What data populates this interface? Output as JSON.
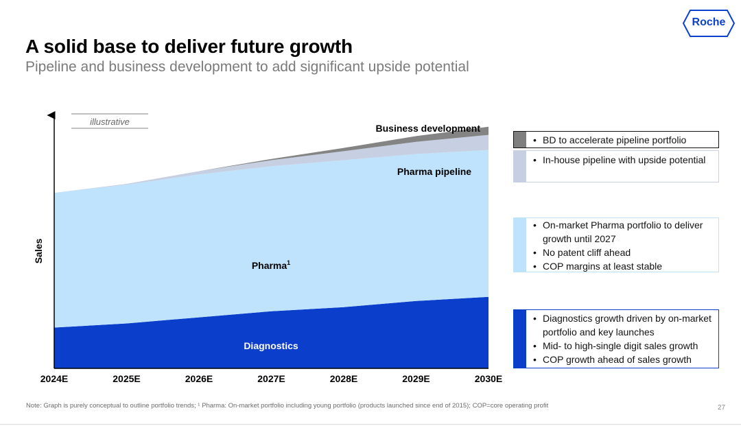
{
  "header": {
    "title": "A solid base to deliver future growth",
    "subtitle": "Pipeline and business development to add significant upside potential",
    "logo_text": "Roche"
  },
  "chart_data": {
    "type": "area",
    "stacked": true,
    "x": [
      "2024E",
      "2025E",
      "2026E",
      "2027E",
      "2028E",
      "2029E",
      "2030E"
    ],
    "ylabel": "Sales",
    "annotation": "illustrative",
    "y_ticks_shown": false,
    "grid": false,
    "series": [
      {
        "name": "Diagnostics",
        "label": "Diagnostics",
        "values": [
          10,
          11,
          12.5,
          14,
          15,
          16.5,
          17.5
        ],
        "color": "#0b3fcb"
      },
      {
        "name": "Pharma",
        "label": "Pharma",
        "label_sup": "1",
        "values": [
          33,
          34,
          35,
          35.5,
          36,
          36,
          36
        ],
        "color": "#bfe3fd"
      },
      {
        "name": "Pharma pipeline",
        "label": "Pharma pipeline",
        "values": [
          0,
          0.2,
          0.8,
          1.5,
          2.2,
          3,
          3.7
        ],
        "color": "#c6d0e2"
      },
      {
        "name": "Business development",
        "label": "Business development",
        "values": [
          0,
          0,
          0,
          0.3,
          0.8,
          1.4,
          2
        ],
        "color": "#848484"
      }
    ]
  },
  "boxes": [
    {
      "key": "bd",
      "color": "#7f7f7f",
      "border": "#7f7f7f",
      "bullets": [
        "BD to accelerate pipeline portfolio"
      ]
    },
    {
      "key": "pipeline",
      "color": "#c6d0e2",
      "border": "#c6d0e2",
      "bullets": [
        "In-house pipeline with upside potential"
      ]
    },
    {
      "key": "pharma",
      "color": "#bfe3fd",
      "border": "#bfe3fd",
      "bullets": [
        "On-market Pharma portfolio to deliver growth until 2027",
        "No patent cliff ahead",
        "COP margins at least stable"
      ]
    },
    {
      "key": "diagnostics",
      "color": "#0b3fcb",
      "border": "#0b3fcb",
      "bullets": [
        "Diagnostics growth driven by on-market portfolio and key launches",
        "Mid- to high-single digit sales growth",
        "COP growth ahead of sales growth"
      ]
    }
  ],
  "footer": {
    "note": "Note: Graph is purely conceptual to outline portfolio trends; ¹ Pharma: On-market portfolio including young portfolio (products launched since end of 2015); COP=core operating profit",
    "page_number": "27"
  }
}
